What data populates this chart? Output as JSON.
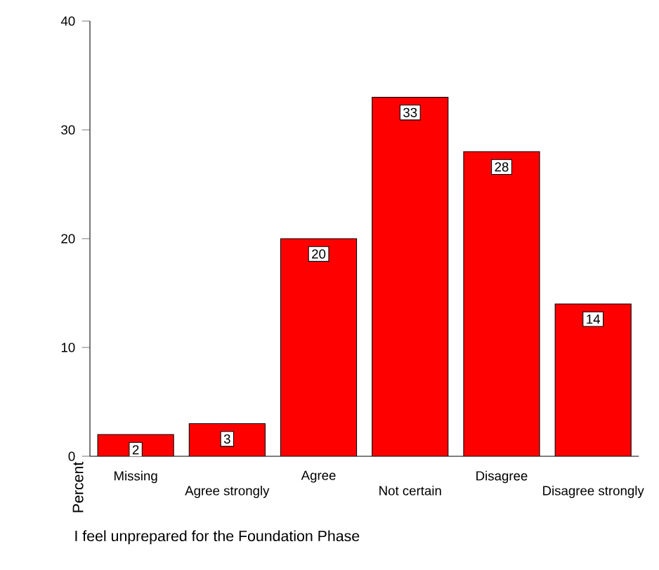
{
  "chart_data": {
    "type": "bar",
    "xlabel": "I feel unprepared for the Foundation Phase",
    "ylabel": "Percent",
    "categories": [
      "Missing",
      "Agree strongly",
      "Agree",
      "Not certain",
      "Disagree",
      "Disagree strongly"
    ],
    "values": [
      2,
      3,
      20,
      33,
      28,
      14
    ],
    "color": "#ff0000",
    "ylim": [
      0,
      40
    ],
    "yticks": [
      0,
      10,
      20,
      30,
      40
    ],
    "data_labels": true
  }
}
